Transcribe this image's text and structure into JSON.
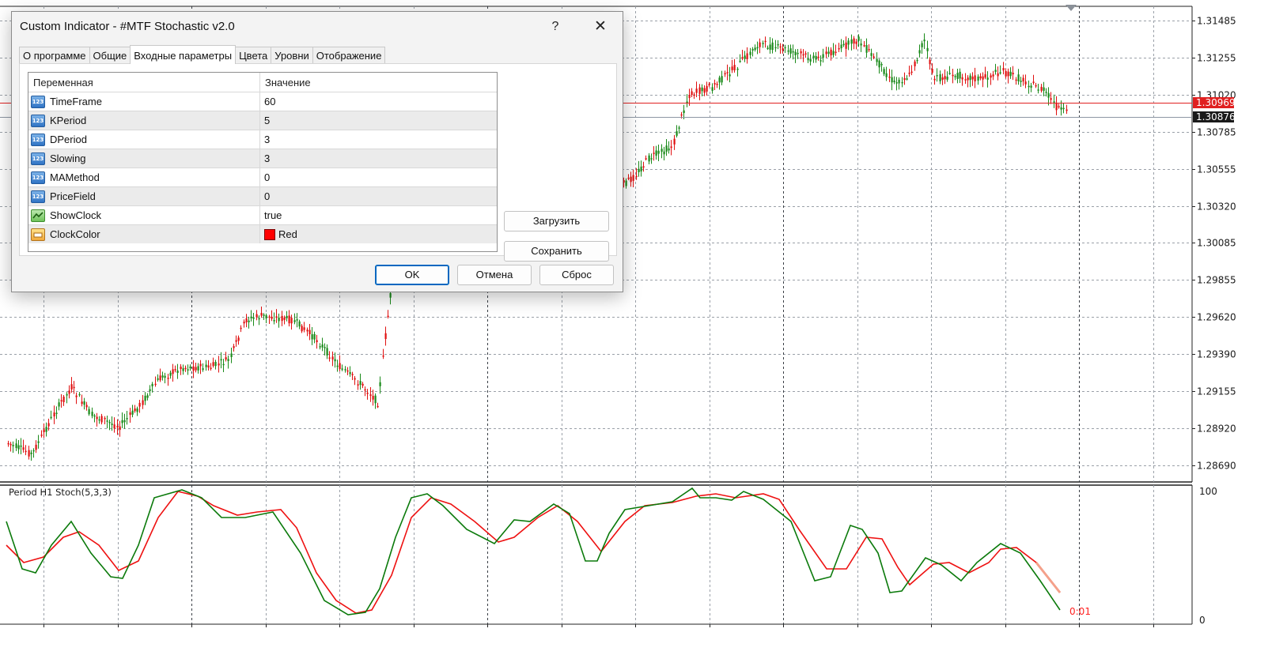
{
  "chart": {
    "price_levels": [
      "1.31485",
      "1.31255",
      "1.31020",
      "1.30785",
      "1.30555",
      "1.30320",
      "1.30085",
      "1.29855",
      "1.29620",
      "1.29390",
      "1.29155",
      "1.28920",
      "1.28690"
    ],
    "current_bid": "1.30876",
    "alert_level": "1.30969",
    "indicator_label": "Period H1 Stoch(5,3,3)",
    "indicator_scale_max": "100",
    "indicator_scale_min": "0",
    "clock_text": "0:01",
    "colors": {
      "bull_candle": "#1a8a1a",
      "bear_candle": "#e01010",
      "main_line": "#0b7a0b",
      "signal_line": "#ee1111",
      "alert_line": "#e02020",
      "bid_label_bg": "#1a1a1a",
      "grid": "#9aa0a8"
    }
  },
  "dialog": {
    "title": "Custom Indicator - #MTF Stochastic v2.0",
    "help_glyph": "?",
    "close_glyph": "✕",
    "tabs": [
      {
        "label": "О программе",
        "active": false
      },
      {
        "label": "Общие",
        "active": false
      },
      {
        "label": "Входные параметры",
        "active": true
      },
      {
        "label": "Цвета",
        "active": false
      },
      {
        "label": "Уровни",
        "active": false
      },
      {
        "label": "Отображение",
        "active": false
      }
    ],
    "grid": {
      "col_variable": "Переменная",
      "col_value": "Значение",
      "rows": [
        {
          "icon": "number-param-icon",
          "name": "TimeFrame",
          "value": "60"
        },
        {
          "icon": "number-param-icon",
          "name": "KPeriod",
          "value": "5"
        },
        {
          "icon": "number-param-icon",
          "name": "DPeriod",
          "value": "3"
        },
        {
          "icon": "number-param-icon",
          "name": "Slowing",
          "value": "3"
        },
        {
          "icon": "number-param-icon",
          "name": "MAMethod",
          "value": "0"
        },
        {
          "icon": "number-param-icon",
          "name": "PriceField",
          "value": "0"
        },
        {
          "icon": "bool-param-icon",
          "name": "ShowClock",
          "value": "true"
        },
        {
          "icon": "color-param-icon",
          "name": "ClockColor",
          "value": "Red",
          "swatch": "#ff0000"
        }
      ]
    },
    "buttons": {
      "load": "Загрузить",
      "save": "Сохранить",
      "ok": "OK",
      "cancel": "Отмена",
      "reset": "Сброс"
    }
  }
}
